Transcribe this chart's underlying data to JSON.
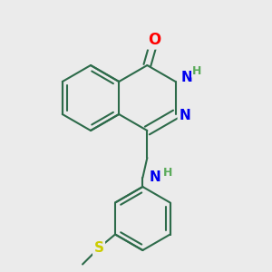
{
  "bg_color": "#ebebeb",
  "bond_color": "#2d6b4a",
  "bond_width": 1.5,
  "atom_colors": {
    "O": "#ff0000",
    "N": "#0000ee",
    "S": "#cccc00",
    "H": "#5aaa5a",
    "C": "#2d6b4a"
  },
  "figsize": [
    3.0,
    3.0
  ],
  "dpi": 100
}
